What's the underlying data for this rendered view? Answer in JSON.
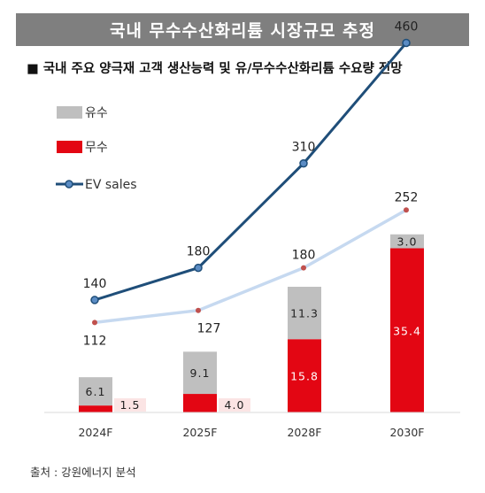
{
  "header": {
    "title": "국내 무수수산화리튬  시장규모 추정",
    "subtitle": "■  국내 주요 양극재 고객 생산능력 및 유/무수수산화리튬 수요량 전망"
  },
  "footer": {
    "source": "출처 : 강원에너지 분석"
  },
  "colors": {
    "yusu": "#bfbfbf",
    "musu": "#e30613",
    "ev_line": "#1f4e79",
    "demand_line": "#c6d9f0",
    "demand_marker": "#c0504d"
  },
  "chart_data": {
    "type": "bar",
    "categories": [
      "2024F",
      "2025F",
      "2028F",
      "2030F"
    ],
    "legend_position": "top-left",
    "grid": false,
    "bar_ylim": [
      0,
      50
    ],
    "line_ylim": [
      0,
      520
    ],
    "series": [
      {
        "name": "유수",
        "kind": "bar",
        "color": "#bfbfbf",
        "values": [
          6.1,
          9.1,
          11.3,
          3.0
        ],
        "labels": [
          "6.1",
          "9.1",
          "11.3",
          "3.0"
        ]
      },
      {
        "name": "무수",
        "kind": "bar",
        "color": "#e30613",
        "values": [
          1.5,
          4.0,
          15.8,
          35.4
        ],
        "labels": [
          "1.5",
          "4.0",
          "15.8",
          "35.4"
        ]
      },
      {
        "name": "EV sales",
        "kind": "line",
        "color": "#1f4e79",
        "values": [
          140,
          180,
          310,
          460
        ],
        "labels": [
          "140",
          "180",
          "310",
          "460"
        ]
      },
      {
        "name": "",
        "kind": "line",
        "color": "#c6d9f0",
        "values": [
          112,
          127,
          180,
          252
        ],
        "labels": [
          "112",
          "127",
          "180",
          "252"
        ]
      }
    ]
  }
}
